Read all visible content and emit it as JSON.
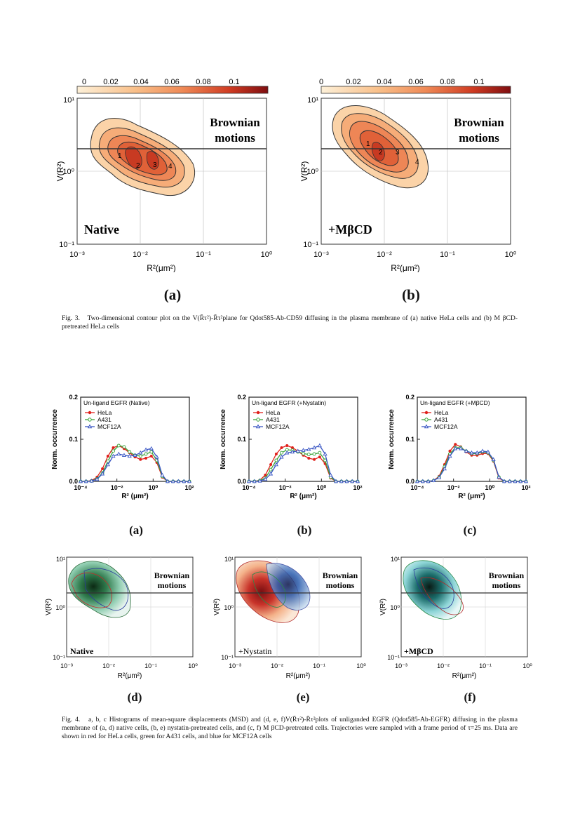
{
  "fig3": {
    "colorbar_ticks": [
      "0",
      "0.02",
      "0.04",
      "0.06",
      "0.08",
      "0.1"
    ],
    "ylabel": "V(R²)",
    "xlabel": "R²(μm²)",
    "y_ticks": [
      "10¹",
      "10⁰",
      "10⁻¹"
    ],
    "x_ticks": [
      "10⁻³",
      "10⁻²",
      "10⁻¹",
      "10⁰"
    ],
    "brownian_line1": "Brownian",
    "brownian_line2": "motions",
    "panels": [
      {
        "label": "(a)",
        "condition": "Native",
        "peaks": [
          "1",
          "2",
          "3",
          "4"
        ]
      },
      {
        "label": "(b)",
        "condition": "+MβCD",
        "peaks": [
          "1",
          "2",
          "3",
          "4"
        ]
      }
    ],
    "caption_lead": "Fig. 3.",
    "caption_text": "Two-dimensional contour plot on the V(R̄τ²)-R̄τ²plane for Qdot585-Ab-CD59 diffusing in the plasma membrane of (a) native HeLa cells and (b) M βCD-pretreated HeLa cells"
  },
  "fig4": {
    "histograms": [
      {
        "label": "(a)",
        "title": "Un-ligand EGFR (Native)"
      },
      {
        "label": "(b)",
        "title": "Un-ligand EGFR (+Nystatin)"
      },
      {
        "label": "(c)",
        "title": "Un-ligand EGFR (+MβCD)"
      }
    ],
    "hist_ylabel": "Norm. occurrence",
    "hist_xlabel": "R² (μm²)",
    "hist_yticks": [
      "0.2",
      "0.1",
      "0.0"
    ],
    "hist_xticks": [
      "10⁻⁴",
      "10⁻²",
      "10⁰",
      "10²"
    ],
    "legend": [
      {
        "name": "HeLa",
        "color": "#e0201b"
      },
      {
        "name": "A431",
        "color": "#3aa33a"
      },
      {
        "name": "MCF12A",
        "color": "#3a56c4"
      }
    ],
    "contours": [
      {
        "label": "(d)",
        "condition": "Native"
      },
      {
        "label": "(e)",
        "condition": "+Nystatin"
      },
      {
        "label": "(f)",
        "condition": "+MβCD"
      }
    ],
    "contour_ylabel": "V(R²)",
    "contour_xlabel": "R²(μm²)",
    "contour_yticks": [
      "10¹",
      "10⁰",
      "10⁻¹"
    ],
    "contour_xticks": [
      "10⁻³",
      "10⁻²",
      "10⁻¹",
      "10⁰"
    ],
    "brownian_line1": "Brownian",
    "brownian_line2": "motions",
    "caption_lead": "Fig. 4.",
    "caption_text": "a, b, c Histograms of mean-square displacements (MSD) and (d, e, f)V(R̄τ²)-R̄τ²plots of unliganded EGFR (Qdot585-Ab-EGFR) diffusing in the plasma membrane of (a, d) native cells, (b, e) nystatin-pretreated cells, and (c, f) M βCD-pretreated cells. Trajectories were sampled with a frame period of τ=25 ms. Data are shown in red for HeLa cells, green for A431 cells, and blue for MCF12A cells"
  },
  "chart_data": [
    {
      "type": "line",
      "title": "Un-ligand EGFR (Native)",
      "xlabel": "R² (μm²)",
      "ylabel": "Norm. occurrence",
      "xscale": "log",
      "xlim": [
        0.0001,
        100
      ],
      "ylim": [
        0,
        0.2
      ],
      "x": [
        0.0001,
        0.0002,
        0.0004,
        0.0008,
        0.0016,
        0.0032,
        0.0063,
        0.0126,
        0.025,
        0.05,
        0.1,
        0.2,
        0.4,
        0.8,
        1.6,
        3.2,
        6.3,
        12.6,
        25,
        50,
        100
      ],
      "series": [
        {
          "name": "HeLa",
          "values": [
            0,
            0,
            0.002,
            0.01,
            0.03,
            0.06,
            0.08,
            0.085,
            0.078,
            0.068,
            0.058,
            0.052,
            0.055,
            0.06,
            0.045,
            0.01,
            0,
            0,
            0,
            0,
            0
          ]
        },
        {
          "name": "A431",
          "values": [
            0,
            0,
            0.001,
            0.006,
            0.02,
            0.048,
            0.072,
            0.085,
            0.082,
            0.07,
            0.062,
            0.06,
            0.065,
            0.07,
            0.05,
            0.012,
            0,
            0,
            0,
            0,
            0
          ]
        },
        {
          "name": "MCF12A",
          "values": [
            0,
            0,
            0.001,
            0.005,
            0.018,
            0.04,
            0.06,
            0.065,
            0.062,
            0.06,
            0.062,
            0.068,
            0.075,
            0.078,
            0.058,
            0.015,
            0,
            0,
            0,
            0,
            0
          ]
        }
      ]
    },
    {
      "type": "line",
      "title": "Un-ligand EGFR (+Nystatin)",
      "xlabel": "R² (μm²)",
      "ylabel": "Norm. occurrence",
      "xscale": "log",
      "xlim": [
        0.0001,
        100
      ],
      "ylim": [
        0,
        0.2
      ],
      "x": [
        0.0001,
        0.0002,
        0.0004,
        0.0008,
        0.0016,
        0.0032,
        0.0063,
        0.0126,
        0.025,
        0.05,
        0.1,
        0.2,
        0.4,
        0.8,
        1.6,
        3.2,
        6.3,
        12.6,
        25,
        50,
        100
      ],
      "series": [
        {
          "name": "HeLa",
          "values": [
            0,
            0,
            0.003,
            0.015,
            0.04,
            0.065,
            0.08,
            0.085,
            0.08,
            0.072,
            0.062,
            0.055,
            0.052,
            0.058,
            0.042,
            0.008,
            0,
            0,
            0,
            0,
            0
          ]
        },
        {
          "name": "A431",
          "values": [
            0,
            0,
            0.002,
            0.008,
            0.028,
            0.05,
            0.068,
            0.075,
            0.074,
            0.07,
            0.066,
            0.064,
            0.065,
            0.068,
            0.05,
            0.01,
            0,
            0,
            0,
            0,
            0
          ]
        },
        {
          "name": "MCF12A",
          "values": [
            0,
            0,
            0.001,
            0.005,
            0.018,
            0.04,
            0.058,
            0.068,
            0.07,
            0.072,
            0.074,
            0.076,
            0.08,
            0.085,
            0.065,
            0.015,
            0,
            0,
            0,
            0,
            0
          ]
        }
      ]
    },
    {
      "type": "line",
      "title": "Un-ligand EGFR (+MβCD)",
      "xlabel": "R² (μm²)",
      "ylabel": "Norm. occurrence",
      "xscale": "log",
      "xlim": [
        0.0001,
        100
      ],
      "ylim": [
        0,
        0.2
      ],
      "x": [
        0.0001,
        0.0002,
        0.0004,
        0.0008,
        0.0016,
        0.0032,
        0.0063,
        0.0126,
        0.025,
        0.05,
        0.1,
        0.2,
        0.4,
        0.8,
        1.6,
        3.2,
        6.3,
        12.6,
        25,
        50,
        100
      ],
      "series": [
        {
          "name": "HeLa",
          "values": [
            0,
            0,
            0,
            0.002,
            0.012,
            0.04,
            0.072,
            0.088,
            0.082,
            0.07,
            0.062,
            0.062,
            0.066,
            0.066,
            0.048,
            0.008,
            0,
            0,
            0,
            0,
            0
          ]
        },
        {
          "name": "A431",
          "values": [
            0,
            0,
            0,
            0.002,
            0.01,
            0.035,
            0.065,
            0.08,
            0.08,
            0.072,
            0.066,
            0.066,
            0.07,
            0.068,
            0.05,
            0.01,
            0,
            0,
            0,
            0,
            0
          ]
        },
        {
          "name": "MCF12A",
          "values": [
            0,
            0,
            0,
            0.002,
            0.009,
            0.03,
            0.06,
            0.078,
            0.078,
            0.072,
            0.068,
            0.068,
            0.072,
            0.07,
            0.052,
            0.01,
            0,
            0,
            0,
            0,
            0
          ]
        }
      ]
    }
  ]
}
